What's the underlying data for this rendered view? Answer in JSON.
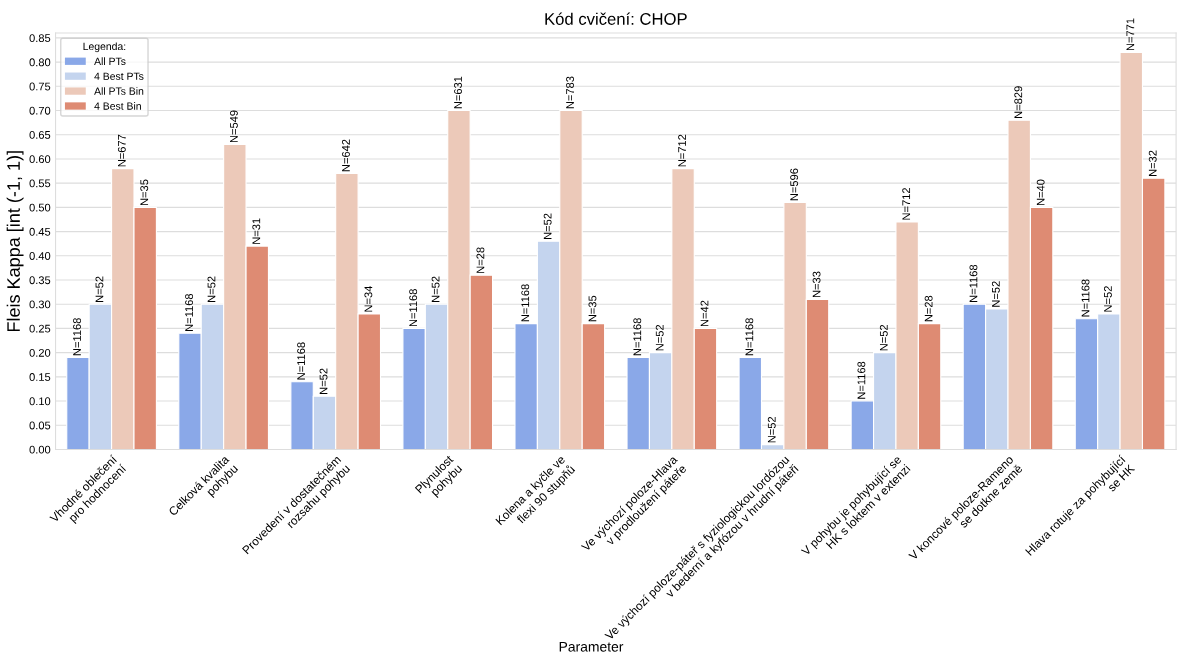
{
  "chart_data": {
    "type": "bar",
    "title": "Kód cvičení: CHOP",
    "xlabel": "Parameter",
    "ylabel": "Fleis Kappa [int (-1, 1)]",
    "legend_title": "Legenda:",
    "categories": [
      "Vhodné oblečení\npro hodnocení",
      "Celková kvalita\npohybu",
      "Provedení v dostatečném\nrozsahu pohybu",
      "Plynulost\npohybu",
      "Kolena a kyčle ve\nflexi 90 stupňů",
      "Ve výchozí poloze-Hlava\nv prodloužení páteře",
      "Ve výchozí poloze-páteř s fyziologickou lordózou\nv bederní a kyfózou v hrudní páteři",
      "V pohybu je pohybující se\nHK s loktem v extenzi",
      "V koncové poloze-Rameno\nse dotkne země",
      "Hlava rotuje za pohybující\nse HK"
    ],
    "series": [
      {
        "name": "All PTs",
        "color": "#8aa8e8",
        "values": [
          0.19,
          0.24,
          0.14,
          0.25,
          0.26,
          0.19,
          0.19,
          0.1,
          0.3,
          0.27
        ]
      },
      {
        "name": "4 Best PTs",
        "color": "#c4d4ee",
        "values": [
          0.3,
          0.3,
          0.11,
          0.3,
          0.43,
          0.2,
          0.01,
          0.2,
          0.29,
          0.28
        ]
      },
      {
        "name": "All PTs Bin",
        "color": "#ecc9b9",
        "values": [
          0.58,
          0.63,
          0.57,
          0.7,
          0.7,
          0.58,
          0.51,
          0.47,
          0.68,
          0.82
        ]
      },
      {
        "name": "4 Best Bin",
        "color": "#de8b73",
        "values": [
          0.5,
          0.42,
          0.28,
          0.36,
          0.26,
          0.25,
          0.31,
          0.26,
          0.5,
          0.56
        ]
      }
    ],
    "annotations": [
      "N=1168",
      "N=1168",
      "N=1168",
      "N=1168",
      "N=1168",
      "N=1168",
      "N=1168",
      "N=1168",
      "N=1168",
      "N=1168",
      "N=52",
      "N=52",
      "N=52",
      "N=52",
      "N=52",
      "N=52",
      "N=52",
      "N=52",
      "N=52",
      "N=52",
      "N=677",
      "N=549",
      "N=642",
      "N=631",
      "N=783",
      "N=712",
      "N=596",
      "N=712",
      "N=829",
      "N=771",
      "N=35",
      "N=31",
      "N=34",
      "N=28",
      "N=35",
      "N=42",
      "N=33",
      "N=28",
      "N=40",
      "N=32"
    ],
    "ylim": [
      0,
      0.86
    ],
    "yticks": [
      {
        "value": 0,
        "label": "0.00"
      },
      {
        "value": 0.05,
        "label": "0.05"
      },
      {
        "value": 0.1,
        "label": "0.10"
      },
      {
        "value": 0.15,
        "label": "0.15"
      },
      {
        "value": 0.2,
        "label": "0.20"
      },
      {
        "value": 0.25,
        "label": "0.25"
      },
      {
        "value": 0.3,
        "label": "0.30"
      },
      {
        "value": 0.35,
        "label": "0.35"
      },
      {
        "value": 0.4,
        "label": "0.40"
      },
      {
        "value": 0.45,
        "label": "0.45"
      },
      {
        "value": 0.5,
        "label": "0.50"
      },
      {
        "value": 0.55,
        "label": "0.55"
      },
      {
        "value": 0.6,
        "label": "0.60"
      },
      {
        "value": 0.65,
        "label": "0.65"
      },
      {
        "value": 0.7,
        "label": "0.70"
      },
      {
        "value": 0.75,
        "label": "0.75"
      },
      {
        "value": 0.8,
        "label": "0.80"
      },
      {
        "value": 0.85,
        "label": "0.85"
      }
    ],
    "grid": "y",
    "legend": "top left"
  }
}
